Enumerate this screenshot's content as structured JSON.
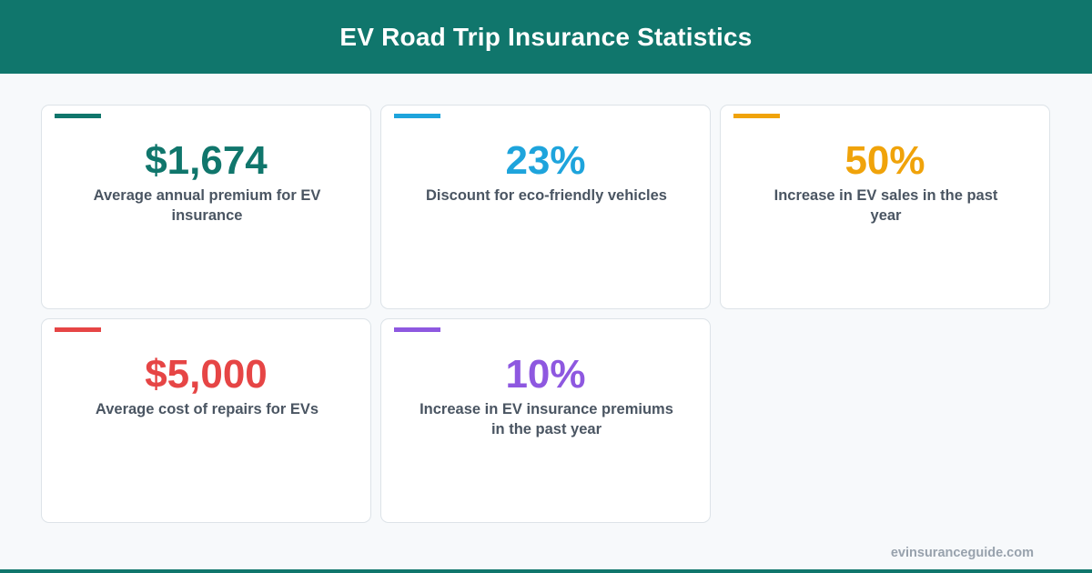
{
  "header": {
    "title": "EV Road Trip Insurance Statistics"
  },
  "stats": [
    {
      "value": "$1,674",
      "description": "Average annual premium for EV insurance",
      "color": "#10766c"
    },
    {
      "value": "23%",
      "description": "Discount for eco-friendly vehicles",
      "color": "#1ea4dc"
    },
    {
      "value": "50%",
      "description": "Increase in EV sales in the past year",
      "color": "#f0a30a"
    },
    {
      "value": "$5,000",
      "description": "Average cost of repairs for EVs",
      "color": "#e64545"
    },
    {
      "value": "10%",
      "description": "Increase in EV insurance premiums in the past year",
      "color": "#8e58e0"
    }
  ],
  "footer": {
    "site": "evinsuranceguide.com",
    "bar_color": "#10766c"
  }
}
